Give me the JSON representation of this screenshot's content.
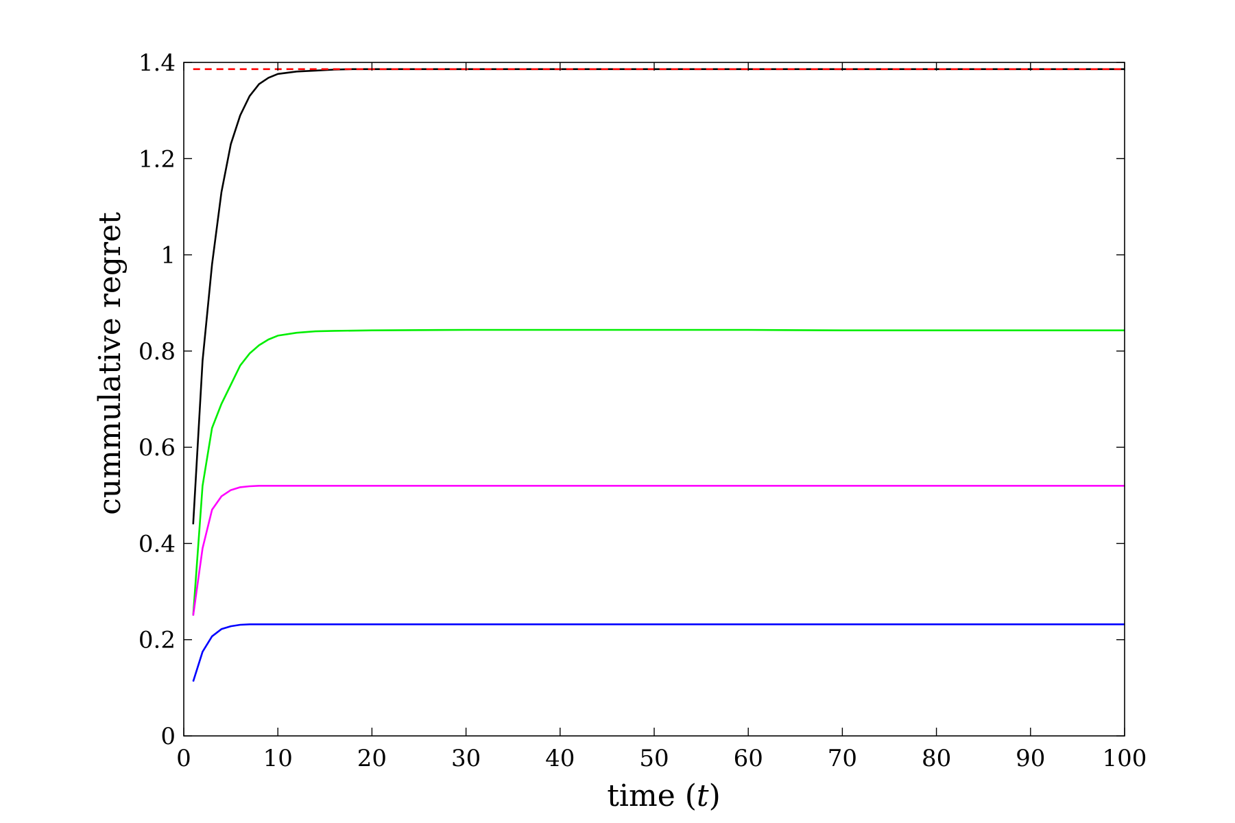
{
  "chart_data": {
    "type": "line",
    "xlabel_main": "time",
    "xlabel_var": "t",
    "ylabel": "cummulative regret",
    "xlim": [
      0,
      100
    ],
    "ylim": [
      0,
      1.4
    ],
    "xticks": [
      "0",
      "10",
      "20",
      "30",
      "40",
      "50",
      "60",
      "70",
      "80",
      "90",
      "100"
    ],
    "yticks": [
      "0",
      "0.2",
      "0.4",
      "0.6",
      "0.8",
      "1",
      "1.2",
      "1.4"
    ],
    "xtick_values": [
      0,
      10,
      20,
      30,
      40,
      50,
      60,
      70,
      80,
      90,
      100
    ],
    "ytick_values": [
      0,
      0.2,
      0.4,
      0.6,
      0.8,
      1.0,
      1.2,
      1.4
    ],
    "grid": false,
    "series": [
      {
        "color": "#000000",
        "style": "solid",
        "x": [
          1,
          2,
          3,
          4,
          5,
          6,
          7,
          8,
          9,
          10,
          12,
          14,
          16,
          18,
          20,
          30,
          40,
          50,
          60,
          70,
          80,
          90,
          100
        ],
        "values": [
          0.44,
          0.78,
          0.98,
          1.13,
          1.23,
          1.29,
          1.33,
          1.355,
          1.368,
          1.376,
          1.381,
          1.383,
          1.385,
          1.386,
          1.386,
          1.386,
          1.386,
          1.386,
          1.386,
          1.386,
          1.386,
          1.386,
          1.386
        ]
      },
      {
        "color": "#00ee00",
        "style": "solid",
        "x": [
          1,
          2,
          3,
          4,
          5,
          6,
          7,
          8,
          9,
          10,
          12,
          14,
          16,
          20,
          30,
          40,
          50,
          60,
          70,
          80,
          90,
          100
        ],
        "values": [
          0.25,
          0.52,
          0.64,
          0.69,
          0.73,
          0.77,
          0.795,
          0.812,
          0.824,
          0.832,
          0.838,
          0.841,
          0.842,
          0.843,
          0.844,
          0.844,
          0.844,
          0.844,
          0.843,
          0.843,
          0.843,
          0.843
        ]
      },
      {
        "color": "#ff00ff",
        "style": "solid",
        "x": [
          1,
          2,
          3,
          4,
          5,
          6,
          7,
          8,
          10,
          20,
          30,
          40,
          50,
          60,
          70,
          80,
          90,
          100
        ],
        "values": [
          0.25,
          0.39,
          0.47,
          0.498,
          0.511,
          0.517,
          0.519,
          0.52,
          0.52,
          0.52,
          0.52,
          0.52,
          0.52,
          0.52,
          0.52,
          0.52,
          0.52,
          0.52
        ]
      },
      {
        "color": "#0000ff",
        "style": "solid",
        "x": [
          1,
          2,
          3,
          4,
          5,
          6,
          7,
          8,
          10,
          20,
          30,
          40,
          50,
          60,
          70,
          80,
          90,
          100
        ],
        "values": [
          0.113,
          0.175,
          0.207,
          0.222,
          0.228,
          0.231,
          0.232,
          0.232,
          0.232,
          0.232,
          0.232,
          0.232,
          0.232,
          0.232,
          0.232,
          0.232,
          0.232,
          0.232
        ]
      },
      {
        "color": "#ff0000",
        "style": "dashed",
        "x": [
          1,
          100
        ],
        "values": [
          1.386,
          1.386
        ]
      }
    ]
  }
}
